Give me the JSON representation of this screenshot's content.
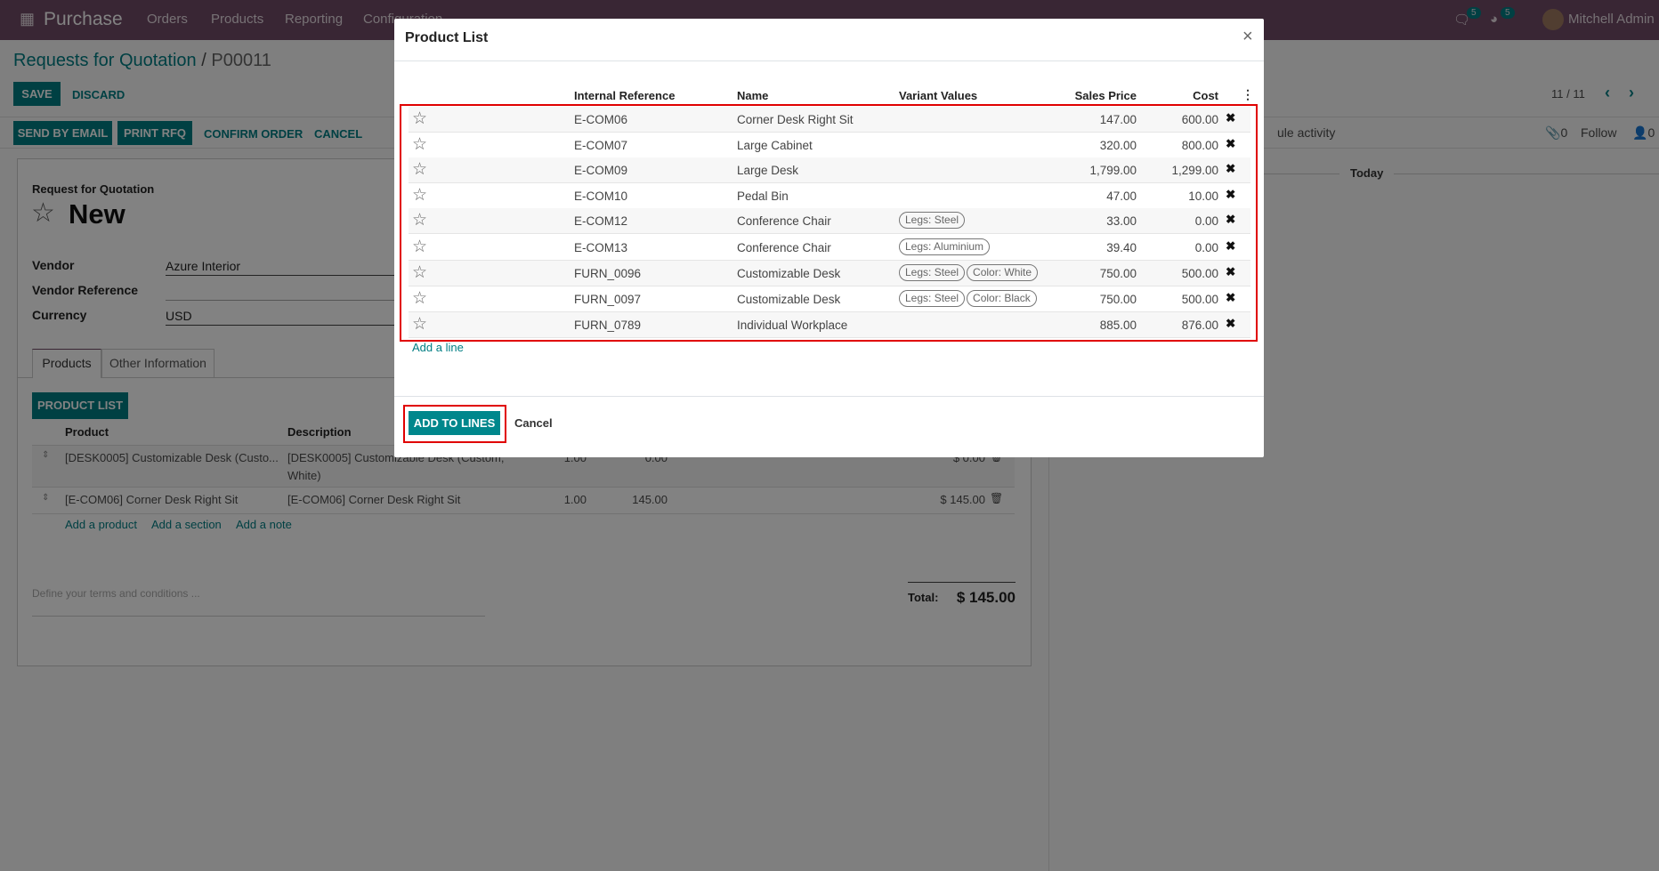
{
  "navbar": {
    "app": "Purchase",
    "menu": [
      "Orders",
      "Products",
      "Reporting",
      "Configuration"
    ],
    "chat_count": "5",
    "activity_count": "5",
    "user": "Mitchell Admin"
  },
  "breadcrumb": {
    "parent": "Requests for Quotation",
    "sep": " / ",
    "current": "P00011"
  },
  "actions": {
    "save": "SAVE",
    "discard": "DISCARD",
    "send_email": "SEND BY EMAIL",
    "print": "PRINT RFQ",
    "confirm": "CONFIRM ORDER",
    "cancel": "CANCEL"
  },
  "pager": "11 / 11",
  "chatter": {
    "schedule": "ule activity",
    "attachments": "0",
    "follow": "Follow",
    "followers": "0",
    "today": "Today"
  },
  "form": {
    "type_label": "Request for Quotation",
    "name": "New",
    "vendor_label": "Vendor",
    "vendor": "Azure Interior",
    "vendor_ref_label": "Vendor Reference",
    "currency_label": "Currency",
    "currency": "USD",
    "tabs": [
      "Products",
      "Other Information"
    ],
    "product_list_btn": "PRODUCT LIST",
    "col_product": "Product",
    "col_description": "Description",
    "lines": [
      {
        "product": "[DESK0005] Customizable Desk (Custo...",
        "desc1": "[DESK0005] Customizable Desk (Custom,",
        "desc2": "White)",
        "qty": "1.00",
        "price": "0.00",
        "subtotal": "$ 0.00"
      },
      {
        "product": "[E-COM06] Corner Desk Right Sit",
        "desc1": "[E-COM06] Corner Desk Right Sit",
        "desc2": "",
        "qty": "1.00",
        "price": "145.00",
        "subtotal": "$ 145.00"
      }
    ],
    "add_product": "Add a product",
    "add_section": "Add a section",
    "add_note": "Add a note",
    "terms_placeholder": "Define your terms and conditions ...",
    "total_label": "Total:",
    "total": "$ 145.00"
  },
  "modal": {
    "title": "Product List",
    "close": "×",
    "columns": [
      "Internal Reference",
      "Name",
      "Variant Values",
      "Sales Price",
      "Cost"
    ],
    "rows": [
      {
        "ref": "E-COM06",
        "name": "Corner Desk Right Sit",
        "variants": [],
        "price": "147.00",
        "cost": "600.00"
      },
      {
        "ref": "E-COM07",
        "name": "Large Cabinet",
        "variants": [],
        "price": "320.00",
        "cost": "800.00"
      },
      {
        "ref": "E-COM09",
        "name": "Large Desk",
        "variants": [],
        "price": "1,799.00",
        "cost": "1,299.00"
      },
      {
        "ref": "E-COM10",
        "name": "Pedal Bin",
        "variants": [],
        "price": "47.00",
        "cost": "10.00"
      },
      {
        "ref": "E-COM12",
        "name": "Conference Chair",
        "variants": [
          "Legs: Steel"
        ],
        "price": "33.00",
        "cost": "0.00"
      },
      {
        "ref": "E-COM13",
        "name": "Conference Chair",
        "variants": [
          "Legs: Aluminium"
        ],
        "price": "39.40",
        "cost": "0.00"
      },
      {
        "ref": "FURN_0096",
        "name": "Customizable Desk",
        "variants": [
          "Legs: Steel",
          "Color: White"
        ],
        "price": "750.00",
        "cost": "500.00"
      },
      {
        "ref": "FURN_0097",
        "name": "Customizable Desk",
        "variants": [
          "Legs: Steel",
          "Color: Black"
        ],
        "price": "750.00",
        "cost": "500.00"
      },
      {
        "ref": "FURN_0789",
        "name": "Individual Workplace",
        "variants": [],
        "price": "885.00",
        "cost": "876.00"
      }
    ],
    "add_line": "Add a line",
    "add_to_lines": "ADD TO LINES",
    "cancel": "Cancel"
  },
  "colors": {
    "brand": "#714B67",
    "primary": "#017e84",
    "highlight": "#e00000"
  }
}
